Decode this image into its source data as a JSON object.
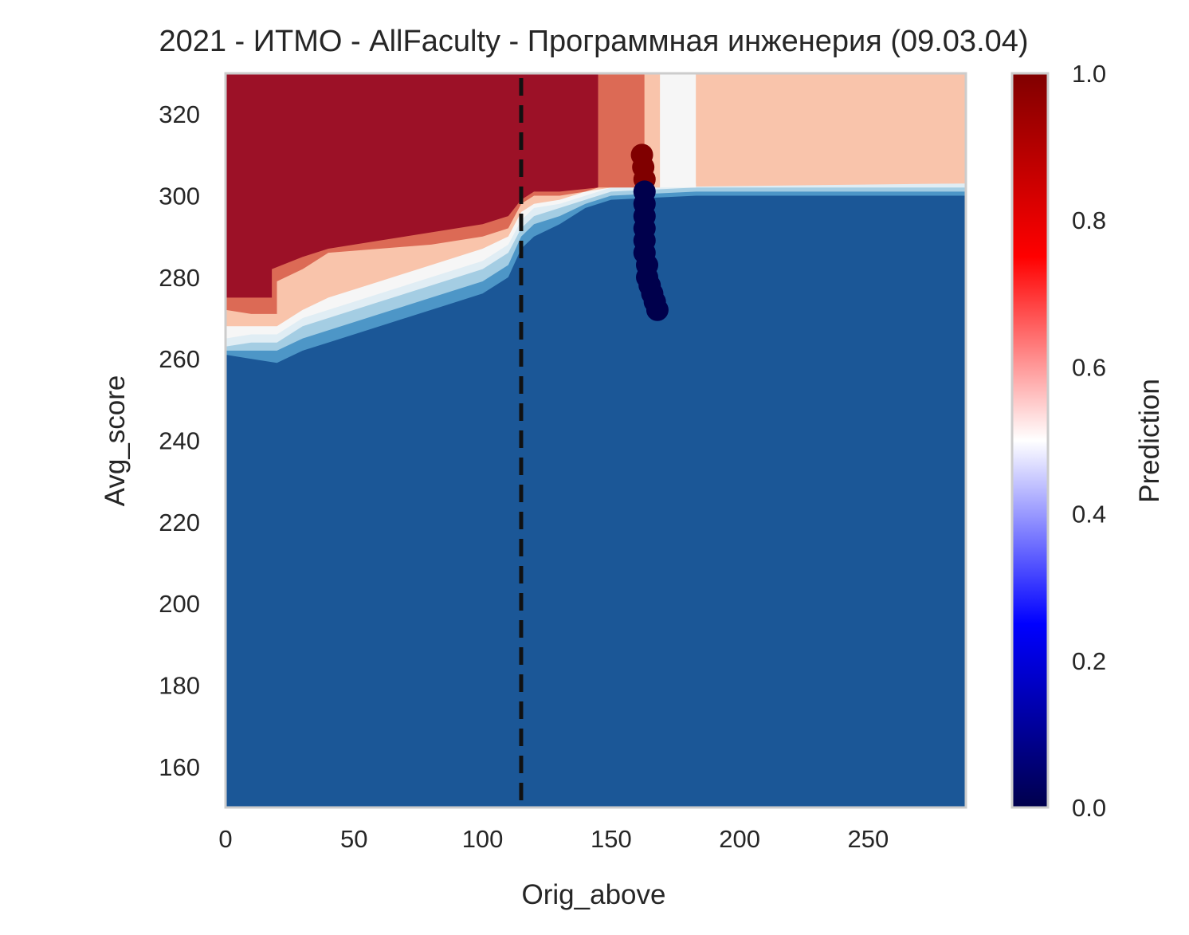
{
  "chart_data": {
    "type": "heatmap",
    "title": "2021 - ИТМО - AllFaculty - Программная инженерия (09.03.04)",
    "xlabel": "Orig_above",
    "ylabel": "Avg_score",
    "xlim": [
      0,
      288
    ],
    "ylim": [
      150,
      330
    ],
    "x_ticks": [
      0,
      50,
      100,
      150,
      200,
      250
    ],
    "y_ticks": [
      160,
      180,
      200,
      220,
      240,
      260,
      280,
      300,
      320
    ],
    "grid": false,
    "colorbar": {
      "label": "Prediction",
      "ticks": [
        "0.0",
        "0.2",
        "0.4",
        "0.6",
        "0.8",
        "1.0"
      ],
      "tick_values": [
        0,
        0.2,
        0.4,
        0.6,
        0.8,
        1.0
      ],
      "range": [
        0,
        1
      ]
    },
    "contour_levels": [
      0,
      0.1,
      0.2,
      0.3,
      0.4,
      0.5,
      0.6,
      0.7,
      0.8,
      0.9,
      1.0
    ],
    "contour_colors": [
      "#1b5797",
      "#4d96c7",
      "#a4cde3",
      "#e0edf4",
      "#f6f6f6",
      "#f9c4ab",
      "#f6b39a",
      "#dc6a55",
      "#9c1127"
    ],
    "decision_boundary": {
      "description_points_x": [
        0,
        10,
        20,
        30,
        40,
        50,
        60,
        70,
        80,
        90,
        100,
        110,
        115,
        120,
        130,
        140,
        150,
        160,
        170,
        180,
        190,
        200,
        250,
        288
      ],
      "description_points_y": [
        262,
        262,
        263,
        268,
        272,
        274,
        276,
        278,
        280,
        282,
        284,
        288,
        295,
        297,
        299,
        300,
        301,
        301,
        302,
        302,
        302,
        302,
        302,
        302
      ]
    },
    "vertical_line": {
      "x": 115,
      "style": "dashed",
      "color": "#111111"
    },
    "scatter": {
      "color_mapped_by": "Prediction",
      "points": [
        {
          "x": 162,
          "y": 310,
          "p": 1.0
        },
        {
          "x": 162.5,
          "y": 307,
          "p": 1.0
        },
        {
          "x": 163,
          "y": 304,
          "p": 1.0
        },
        {
          "x": 163,
          "y": 301,
          "p": 0.0
        },
        {
          "x": 163,
          "y": 298,
          "p": 0.0
        },
        {
          "x": 163,
          "y": 295,
          "p": 0.0
        },
        {
          "x": 163,
          "y": 292,
          "p": 0.0
        },
        {
          "x": 163,
          "y": 289,
          "p": 0.0
        },
        {
          "x": 163,
          "y": 286,
          "p": 0.0
        },
        {
          "x": 164,
          "y": 283,
          "p": 0.0
        },
        {
          "x": 164,
          "y": 280,
          "p": 0.0
        },
        {
          "x": 165,
          "y": 278,
          "p": 0.0
        },
        {
          "x": 166,
          "y": 276,
          "p": 0.0
        },
        {
          "x": 167,
          "y": 274,
          "p": 0.0
        },
        {
          "x": 168,
          "y": 272,
          "p": 0.0
        }
      ]
    }
  }
}
